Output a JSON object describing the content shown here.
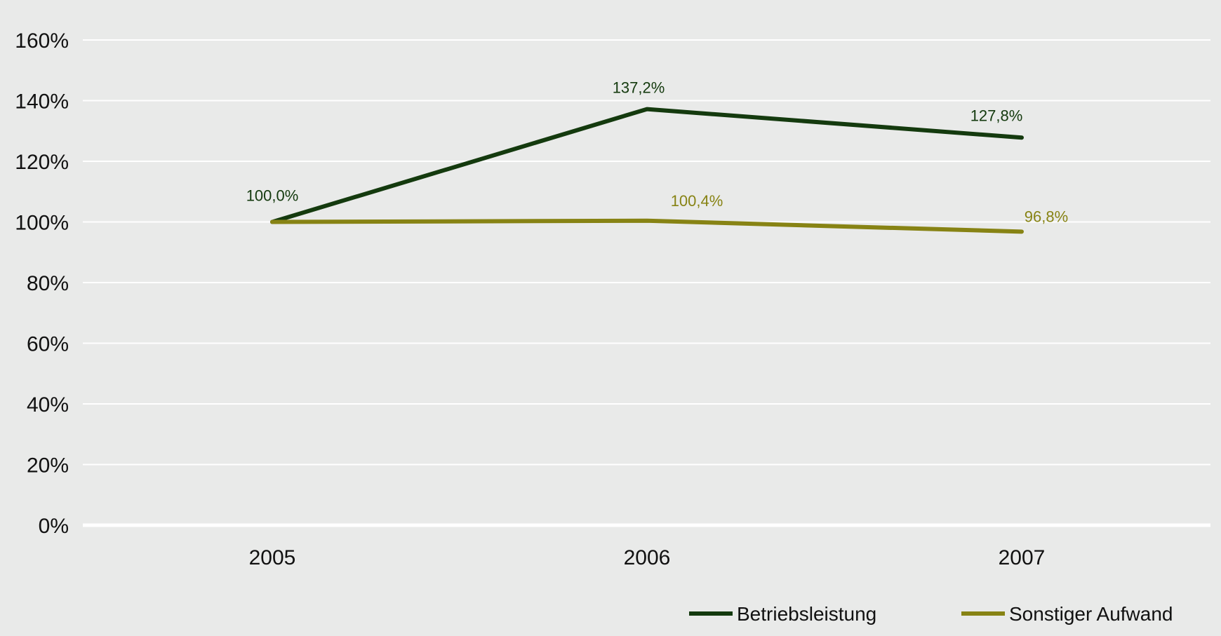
{
  "chart_data": {
    "type": "line",
    "title": "",
    "xlabel": "",
    "ylabel": "",
    "categories": [
      "2005",
      "2006",
      "2007"
    ],
    "ylim": [
      0,
      160
    ],
    "y_ticks": [
      0,
      20,
      40,
      60,
      80,
      100,
      120,
      140,
      160
    ],
    "y_tick_labels": [
      "0%",
      "20%",
      "40%",
      "60%",
      "80%",
      "100%",
      "120%",
      "140%",
      "160%"
    ],
    "grid": true,
    "legend_position": "bottom-right",
    "background_color": "#E9EAE9",
    "series": [
      {
        "name": "Betriebsleistung",
        "color": "#143A0E",
        "values": [
          100.0,
          137.2,
          127.8
        ],
        "labels": [
          "100,0%",
          "137,2%",
          "127,8%"
        ]
      },
      {
        "name": "Sonstiger Aufwand",
        "color": "#878314",
        "values": [
          100.0,
          100.4,
          96.8
        ],
        "labels": [
          "",
          "100,4%",
          "96,8%"
        ]
      }
    ]
  }
}
